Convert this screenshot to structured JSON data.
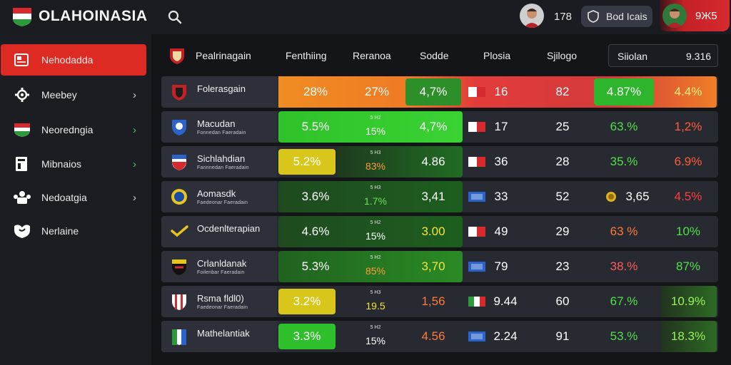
{
  "app": {
    "brand": "OLAHOINASIA",
    "count": "178",
    "bet_button_label": "Bod Icais",
    "user_chip_text": "9Ж5"
  },
  "sidebar": {
    "items": [
      {
        "label": "Nehodadda",
        "icon": "newspaper-icon",
        "chevron": "",
        "active": true
      },
      {
        "label": "Meebey",
        "icon": "gear-icon",
        "chevron": "›",
        "chevron_color": "white"
      },
      {
        "label": "Neoredngia",
        "icon": "shield-flag-icon",
        "chevron": "›",
        "chevron_color": "green"
      },
      {
        "label": "Mibnaios",
        "icon": "document-icon",
        "chevron": "›",
        "chevron_color": "green"
      },
      {
        "label": "Nedoatgia",
        "icon": "groups-icon",
        "chevron": "›",
        "chevron_color": "white"
      },
      {
        "label": "Nerlaine",
        "icon": "heart-shield-icon",
        "chevron": ""
      }
    ]
  },
  "table": {
    "headers": [
      "Pealrinagain",
      "Fenthiing",
      "Reranoa",
      "Sodde",
      "Plosia",
      "Sjilogo"
    ],
    "filter": {
      "label": "Siiolan",
      "value": "9.316"
    },
    "rows": [
      {
        "team": "Folerasgain",
        "sub": "",
        "c1": "28%",
        "c2_top": "",
        "c2": "27%",
        "c3": "4,7%",
        "c4": "16",
        "c5": "82",
        "c6": "4.87%",
        "c7": "4.4%"
      },
      {
        "team": "Macudan",
        "sub": "Fonnedan Faeradain",
        "c1": "5.5%",
        "c2_top": "5 H2",
        "c2": "15%",
        "c3": "4,7%",
        "c4": "17",
        "c5": "25",
        "c6": "63.%",
        "c7": "1,2%"
      },
      {
        "team": "Sichlahdian",
        "sub": "Fannnedan Faeradain",
        "c1": "5.2%",
        "c2_top": "5 H3",
        "c2": "83%",
        "c3": "4.86",
        "c4": "36",
        "c5": "28",
        "c6": "35.%",
        "c7": "6.9%"
      },
      {
        "team": "Aomasdk",
        "sub": "Faedeonar Faeradain",
        "c1": "3.6%",
        "c2_top": "5 H3",
        "c2": "1.7%",
        "c3": "3,41",
        "c4": "33",
        "c5": "52",
        "c6": "3,65",
        "c7": "4.5%"
      },
      {
        "team": "Ocdenlterapian",
        "sub": "",
        "c1": "4.6%",
        "c2_top": "5 H2",
        "c2": "15%",
        "c3": "3.00",
        "c4": "49",
        "c5": "29",
        "c6": "63 %",
        "c7": "10%"
      },
      {
        "team": "Crlanldanak",
        "sub": "Foilenbar Faeradain",
        "c1": "5.3%",
        "c2_top": "5 H2",
        "c2": "85%",
        "c3": "3,70",
        "c4": "79",
        "c5": "23",
        "c6": "38.%",
        "c7": "87%"
      },
      {
        "team": "Rsma fldl0)",
        "sub": "Faedeonar Faeradain",
        "c1": "3.2%",
        "c2_top": "5 H3",
        "c2": "19.5",
        "c3": "1,56",
        "c4": "9.44",
        "c5": "60",
        "c6": "67.%",
        "c7": "10.9%"
      },
      {
        "team": "Mathelantiak",
        "sub": "",
        "c1": "3.3%",
        "c2_top": "5 H2",
        "c2": "15%",
        "c3": "4.56",
        "c4": "2.24",
        "c5": "91",
        "c6": "53.%",
        "c7": "18.3%"
      }
    ]
  },
  "colors": {
    "accent_red": "#dd2a22",
    "green": "#2fbf2a",
    "yellow": "#d8c61a",
    "orange": "#ef8a22"
  }
}
